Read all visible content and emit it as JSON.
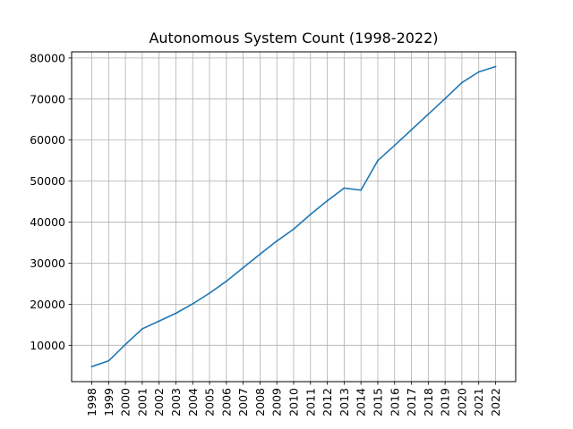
{
  "chart_data": {
    "type": "line",
    "title": "Autonomous System Count (1998-2022)",
    "xlabel": "",
    "ylabel": "",
    "x": [
      "1998",
      "1999",
      "2000",
      "2001",
      "2002",
      "2003",
      "2004",
      "2005",
      "2006",
      "2007",
      "2008",
      "2009",
      "2010",
      "2011",
      "2012",
      "2013",
      "2014",
      "2015",
      "2016",
      "2017",
      "2018",
      "2019",
      "2020",
      "2021",
      "2022"
    ],
    "series": [
      {
        "values": [
          4800,
          6200,
          10200,
          14000,
          15900,
          17800,
          20100,
          22700,
          25600,
          28900,
          32200,
          35400,
          38300,
          41900,
          45200,
          48300,
          47800,
          55000,
          58700,
          62500,
          66300,
          70100,
          74000,
          76600,
          77900
        ],
        "color": "#1f77b4"
      }
    ],
    "yticks": [
      10000,
      20000,
      30000,
      40000,
      50000,
      60000,
      70000,
      80000
    ],
    "ytick_labels": [
      "10000",
      "20000",
      "30000",
      "40000",
      "50000",
      "60000",
      "70000",
      "80000"
    ],
    "ylim": [
      1140,
      81500
    ],
    "grid": true
  }
}
